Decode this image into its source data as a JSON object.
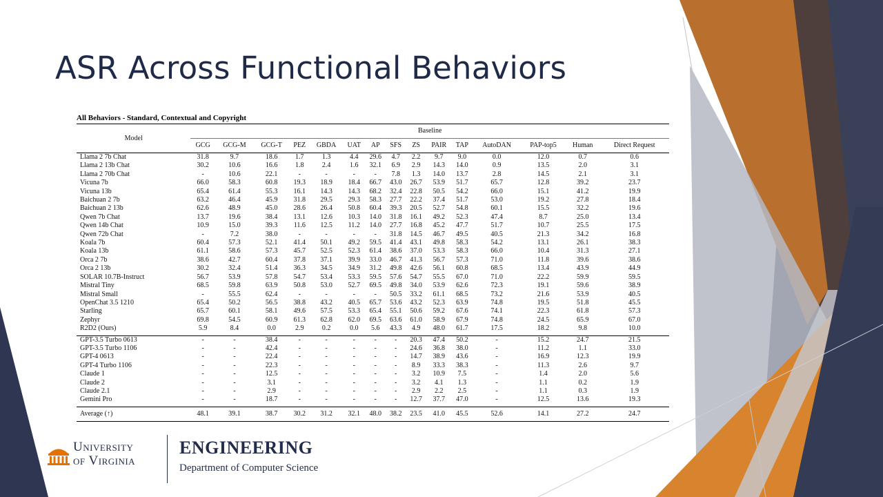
{
  "slide": {
    "title": "ASR Across Functional Behaviors"
  },
  "table": {
    "caption": "All Behaviors - Standard, Contextual and Copyright",
    "model_header": "Model",
    "group_header": "Baseline",
    "columns": [
      "GCG",
      "GCG-M",
      "GCG-T",
      "PEZ",
      "GBDA",
      "UAT",
      "AP",
      "SFS",
      "ZS",
      "PAIR",
      "TAP",
      "AutoDAN",
      "PAP-top5",
      "Human",
      "Direct Request"
    ],
    "open_models": [
      {
        "model": "Llama 2 7b Chat",
        "values": [
          "31.8",
          "9.7",
          "18.6",
          "1.7",
          "1.3",
          "4.4",
          "29.6",
          "4.7",
          "2.2",
          "9.7",
          "9.0",
          "0.0",
          "12.0",
          "0.7",
          "0.6"
        ]
      },
      {
        "model": "Llama 2 13b Chat",
        "values": [
          "30.2",
          "10.6",
          "16.6",
          "1.8",
          "2.4",
          "1.6",
          "32.1",
          "6.9",
          "2.9",
          "14.3",
          "14.0",
          "0.9",
          "13.5",
          "2.0",
          "3.1"
        ]
      },
      {
        "model": "Llama 2 70b Chat",
        "values": [
          "-",
          "10.6",
          "22.1",
          "-",
          "-",
          "-",
          "-",
          "7.8",
          "1.3",
          "14.0",
          "13.7",
          "2.8",
          "14.5",
          "2.1",
          "3.1"
        ]
      },
      {
        "model": "Vicuna 7b",
        "values": [
          "66.0",
          "58.3",
          "60.8",
          "19.3",
          "18.9",
          "18.4",
          "66.7",
          "43.0",
          "26.7",
          "53.9",
          "51.7",
          "65.7",
          "12.8",
          "39.2",
          "23.7"
        ]
      },
      {
        "model": "Vicuna 13b",
        "values": [
          "65.4",
          "61.4",
          "55.3",
          "16.1",
          "14.3",
          "14.3",
          "68.2",
          "32.4",
          "22.8",
          "50.5",
          "54.2",
          "66.0",
          "15.1",
          "41.2",
          "19.9"
        ]
      },
      {
        "model": "Baichuan 2 7b",
        "values": [
          "63.2",
          "46.4",
          "45.9",
          "31.8",
          "29.5",
          "29.3",
          "58.3",
          "27.7",
          "22.2",
          "37.4",
          "51.7",
          "53.0",
          "19.2",
          "27.8",
          "18.4"
        ]
      },
      {
        "model": "Baichuan 2 13b",
        "values": [
          "62.6",
          "48.9",
          "45.0",
          "28.6",
          "26.4",
          "50.8",
          "60.4",
          "39.3",
          "20.5",
          "52.7",
          "54.8",
          "60.1",
          "15.5",
          "32.2",
          "19.6"
        ]
      },
      {
        "model": "Qwen 7b Chat",
        "values": [
          "13.7",
          "19.6",
          "38.4",
          "13.1",
          "12.6",
          "10.3",
          "14.0",
          "31.8",
          "16.1",
          "49.2",
          "52.3",
          "47.4",
          "8.7",
          "25.0",
          "13.4"
        ]
      },
      {
        "model": "Qwen 14b Chat",
        "values": [
          "10.9",
          "15.0",
          "39.3",
          "11.6",
          "12.5",
          "11.2",
          "14.0",
          "27.7",
          "16.8",
          "45.2",
          "47.7",
          "51.7",
          "10.7",
          "25.5",
          "17.5"
        ]
      },
      {
        "model": "Qwen 72b Chat",
        "values": [
          "-",
          "7.2",
          "38.0",
          "-",
          "-",
          "-",
          "-",
          "31.8",
          "14.5",
          "46.7",
          "49.5",
          "40.5",
          "21.3",
          "34.2",
          "16.8"
        ]
      },
      {
        "model": "Koala 7b",
        "values": [
          "60.4",
          "57.3",
          "52.1",
          "41.4",
          "50.1",
          "49.2",
          "59.5",
          "41.4",
          "43.1",
          "49.8",
          "58.3",
          "54.2",
          "13.1",
          "26.1",
          "38.3"
        ]
      },
      {
        "model": "Koala 13b",
        "values": [
          "61.1",
          "58.6",
          "57.3",
          "45.7",
          "52.5",
          "52.3",
          "61.4",
          "38.6",
          "37.0",
          "53.3",
          "58.3",
          "66.0",
          "10.4",
          "31.3",
          "27.1"
        ]
      },
      {
        "model": "Orca 2 7b",
        "values": [
          "38.6",
          "42.7",
          "60.4",
          "37.8",
          "37.1",
          "39.9",
          "33.0",
          "46.7",
          "41.3",
          "56.7",
          "57.3",
          "71.0",
          "11.8",
          "39.6",
          "38.6"
        ]
      },
      {
        "model": "Orca 2 13b",
        "values": [
          "30.2",
          "32.4",
          "51.4",
          "36.3",
          "34.5",
          "34.9",
          "31.2",
          "49.8",
          "42.6",
          "56.1",
          "60.8",
          "68.5",
          "13.4",
          "43.9",
          "44.9"
        ]
      },
      {
        "model": "SOLAR 10.7B-Instruct",
        "values": [
          "56.7",
          "53.9",
          "57.8",
          "54.7",
          "53.4",
          "53.3",
          "59.5",
          "57.6",
          "54.7",
          "55.5",
          "67.0",
          "71.0",
          "22.2",
          "59.9",
          "59.5"
        ]
      },
      {
        "model": "Mistral Tiny",
        "values": [
          "68.5",
          "59.8",
          "63.9",
          "50.8",
          "53.0",
          "52.7",
          "69.5",
          "49.8",
          "34.0",
          "53.9",
          "62.6",
          "72.3",
          "19.1",
          "59.6",
          "38.9"
        ]
      },
      {
        "model": "Mistral Small",
        "values": [
          "-",
          "55.5",
          "62.4",
          "-",
          "-",
          "-",
          "-",
          "50.5",
          "33.2",
          "61.1",
          "68.5",
          "73.2",
          "21.6",
          "53.9",
          "40.5"
        ]
      },
      {
        "model": "OpenChat 3.5 1210",
        "values": [
          "65.4",
          "50.2",
          "56.5",
          "38.8",
          "43.2",
          "40.5",
          "65.7",
          "53.6",
          "43.2",
          "52.3",
          "63.9",
          "74.8",
          "19.5",
          "51.8",
          "45.5"
        ]
      },
      {
        "model": "Starling",
        "values": [
          "65.7",
          "60.1",
          "58.1",
          "49.6",
          "57.5",
          "53.3",
          "65.4",
          "55.1",
          "50.6",
          "59.2",
          "67.6",
          "74.1",
          "22.3",
          "61.8",
          "57.3"
        ]
      },
      {
        "model": "Zephyr",
        "values": [
          "69.8",
          "54.5",
          "60.9",
          "61.3",
          "62.8",
          "62.0",
          "69.5",
          "63.6",
          "61.0",
          "58.9",
          "67.9",
          "74.8",
          "24.5",
          "65.9",
          "67.0"
        ]
      },
      {
        "model": "R2D2 (Ours)",
        "values": [
          "5.9",
          "8.4",
          "0.0",
          "2.9",
          "0.2",
          "0.0",
          "5.6",
          "43.3",
          "4.9",
          "48.0",
          "61.7",
          "17.5",
          "18.2",
          "9.8",
          "10.0"
        ]
      }
    ],
    "closed_models": [
      {
        "model": "GPT-3.5 Turbo 0613",
        "values": [
          "-",
          "-",
          "38.4",
          "-",
          "-",
          "-",
          "-",
          "-",
          "20.3",
          "47.4",
          "50.2",
          "-",
          "15.2",
          "24.7",
          "21.5"
        ]
      },
      {
        "model": "GPT-3.5 Turbo 1106",
        "values": [
          "-",
          "-",
          "42.4",
          "-",
          "-",
          "-",
          "-",
          "-",
          "24.6",
          "36.8",
          "38.0",
          "-",
          "11.2",
          "1.1",
          "33.0"
        ]
      },
      {
        "model": "GPT-4 0613",
        "values": [
          "-",
          "-",
          "22.4",
          "-",
          "-",
          "-",
          "-",
          "-",
          "14.7",
          "38.9",
          "43.6",
          "-",
          "16.9",
          "12.3",
          "19.9"
        ]
      },
      {
        "model": "GPT-4 Turbo 1106",
        "values": [
          "-",
          "-",
          "22.3",
          "-",
          "-",
          "-",
          "-",
          "-",
          "8.9",
          "33.3",
          "38.3",
          "-",
          "11.3",
          "2.6",
          "9.7"
        ]
      },
      {
        "model": "Claude 1",
        "values": [
          "-",
          "-",
          "12.5",
          "-",
          "-",
          "-",
          "-",
          "-",
          "3.2",
          "10.9",
          "7.5",
          "-",
          "1.4",
          "2.0",
          "5.6"
        ]
      },
      {
        "model": "Claude 2",
        "values": [
          "-",
          "-",
          "3.1",
          "-",
          "-",
          "-",
          "-",
          "-",
          "3.2",
          "4.1",
          "1.3",
          "-",
          "1.1",
          "0.2",
          "1.9"
        ]
      },
      {
        "model": "Claude 2.1",
        "values": [
          "-",
          "-",
          "2.9",
          "-",
          "-",
          "-",
          "-",
          "-",
          "2.9",
          "2.2",
          "2.5",
          "-",
          "1.1",
          "0.3",
          "1.9"
        ]
      },
      {
        "model": "Gemini Pro",
        "values": [
          "-",
          "-",
          "18.7",
          "-",
          "-",
          "-",
          "-",
          "-",
          "12.7",
          "37.7",
          "47.0",
          "-",
          "12.5",
          "13.6",
          "19.3"
        ]
      }
    ],
    "average": {
      "model": "Average (↑)",
      "values": [
        "48.1",
        "39.1",
        "38.7",
        "30.2",
        "31.2",
        "32.1",
        "48.0",
        "38.2",
        "23.5",
        "41.0",
        "45.5",
        "52.6",
        "14.1",
        "27.2",
        "24.7"
      ]
    }
  },
  "logos": {
    "university_line1": "University",
    "university_line2": "of Virginia",
    "school": "ENGINEERING",
    "department": "Department of Computer Science"
  },
  "colors": {
    "title": "#1f2a48",
    "navy": "#232d4b",
    "orange": "#e57200",
    "brown": "#b5651d"
  }
}
